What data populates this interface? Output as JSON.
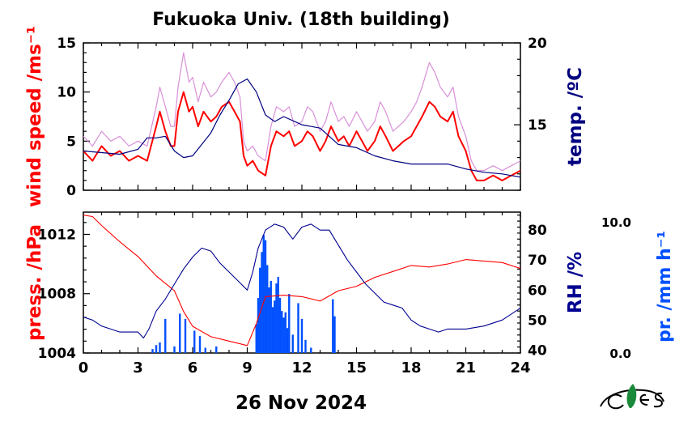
{
  "title": "Fukuoka Univ. (18th building)",
  "xlabel": "26 Nov 2024",
  "colors": {
    "wind": "#ff0000",
    "wind_gust": "#d890d8",
    "temp": "#000080",
    "press": "#ff0000",
    "rh": "#000090",
    "precip": "#0050ff",
    "axis": "#000000"
  },
  "logo": "ces-logo-icon",
  "chart_data": [
    {
      "type": "line",
      "panel": "top",
      "xlim": [
        0,
        24
      ],
      "xticks": [
        0,
        3,
        6,
        9,
        12,
        15,
        18,
        21,
        24
      ],
      "left_axis": {
        "label": "wind speed /ms⁻¹",
        "ylim": [
          0,
          15
        ],
        "ticks": [
          0,
          5,
          10,
          15
        ]
      },
      "right_axis": {
        "label": "temp. /ºC",
        "ylim": [
          11,
          20
        ],
        "ticks": [
          15,
          20
        ]
      },
      "series": [
        {
          "axis": "left",
          "kind": "wind",
          "x": [
            0,
            0.5,
            1,
            1.5,
            2,
            2.5,
            3,
            3.5,
            4,
            4.2,
            4.5,
            4.8,
            5,
            5.2,
            5.5,
            5.8,
            6,
            6.3,
            6.6,
            7,
            7.3,
            7.6,
            8,
            8.3,
            8.6,
            8.8,
            9,
            9.3,
            9.6,
            10,
            10.3,
            10.6,
            11,
            11.3,
            11.6,
            12,
            12.3,
            12.6,
            13,
            13.3,
            13.6,
            14,
            14.3,
            14.6,
            15,
            15.3,
            15.6,
            16,
            16.3,
            16.6,
            17,
            17.3,
            17.6,
            18,
            18.3,
            18.6,
            19,
            19.3,
            19.6,
            20,
            20.3,
            20.6,
            21,
            21.3,
            21.6,
            22,
            22.5,
            23,
            23.5,
            24
          ],
          "values": [
            4,
            3,
            4.5,
            3.5,
            4,
            3,
            3.5,
            3,
            6.5,
            8,
            6,
            4.5,
            4.5,
            8,
            10,
            8,
            8.5,
            6.5,
            8,
            7,
            7.5,
            8.5,
            9,
            8,
            7,
            3.5,
            2.5,
            3,
            2,
            1.5,
            4.5,
            6,
            5.5,
            6,
            4.5,
            5,
            6,
            5.5,
            4,
            5,
            6.5,
            5,
            5.5,
            4.5,
            6,
            5,
            4,
            5,
            6.5,
            5.5,
            4,
            4.5,
            5,
            5.5,
            6.5,
            7.5,
            9,
            8.5,
            7.5,
            7,
            8,
            5.5,
            4,
            2,
            1,
            1,
            1.5,
            1,
            1.5,
            2
          ]
        },
        {
          "axis": "left",
          "kind": "gust",
          "x": [
            0,
            0.5,
            1,
            1.5,
            2,
            2.5,
            3,
            3.5,
            4,
            4.2,
            4.5,
            4.8,
            5,
            5.2,
            5.5,
            5.8,
            6,
            6.3,
            6.6,
            7,
            7.3,
            7.6,
            8,
            8.3,
            8.6,
            8.8,
            9,
            9.3,
            9.6,
            10,
            10.3,
            10.6,
            11,
            11.3,
            11.6,
            12,
            12.3,
            12.6,
            13,
            13.3,
            13.6,
            14,
            14.3,
            14.6,
            15,
            15.3,
            15.6,
            16,
            16.3,
            16.6,
            17,
            17.3,
            17.6,
            18,
            18.3,
            18.6,
            19,
            19.3,
            19.6,
            20,
            20.3,
            20.6,
            21,
            21.3,
            21.6,
            22,
            22.5,
            23,
            23.5,
            24
          ],
          "values": [
            5.5,
            4.5,
            6,
            5,
            5.5,
            4.5,
            5,
            4.5,
            8.5,
            10.5,
            8.5,
            6.5,
            6.5,
            10.5,
            14,
            11,
            11.5,
            9,
            11,
            9.5,
            10,
            11,
            12,
            11,
            9.5,
            5,
            4,
            4.5,
            3.5,
            3,
            6.5,
            8.5,
            8,
            8.5,
            6.5,
            7,
            8.5,
            8,
            6,
            7,
            9,
            7,
            7.5,
            6.5,
            8,
            7,
            6,
            7,
            9,
            8,
            6,
            6.5,
            7,
            8,
            9,
            10.5,
            13,
            12,
            10.5,
            9.5,
            10.5,
            7.5,
            5.5,
            3,
            2,
            2,
            2.5,
            2,
            2.5,
            3
          ]
        },
        {
          "axis": "right",
          "kind": "temp",
          "x": [
            0,
            1,
            2,
            3,
            3.5,
            4,
            4.5,
            5,
            5.5,
            6,
            6.5,
            7,
            7.5,
            8,
            8.5,
            9,
            9.5,
            10,
            10.5,
            11,
            12,
            13,
            14,
            15,
            16,
            17,
            18,
            19,
            20,
            21,
            22,
            23,
            24
          ],
          "values": [
            13.4,
            13.3,
            13.2,
            13.5,
            14.2,
            14.2,
            14.3,
            13.4,
            13,
            13.1,
            13.8,
            14.5,
            15.6,
            16.5,
            17.5,
            17.8,
            17,
            15.6,
            15.2,
            15.5,
            15,
            14.8,
            13.8,
            13.6,
            13.1,
            12.8,
            12.6,
            12.6,
            12.6,
            12.3,
            12.1,
            12,
            11.8
          ]
        }
      ]
    },
    {
      "type": "line",
      "panel": "bottom",
      "xlim": [
        0,
        24
      ],
      "xticks": [
        0,
        3,
        6,
        9,
        12,
        15,
        18,
        21,
        24
      ],
      "xticklabels": [
        "0",
        "3",
        "6",
        "9",
        "12",
        "15",
        "18",
        "21",
        "24"
      ],
      "left_axis": {
        "label": "press. /hPa",
        "ylim": [
          1004,
          1013.5
        ],
        "ticks": [
          1004,
          1008,
          1012
        ]
      },
      "right_axis": {
        "label": "RH /%",
        "ylim": [
          39,
          86
        ],
        "ticks": [
          40,
          50,
          60,
          70,
          80
        ]
      },
      "far_right_axis": {
        "label": "pr. /mm h⁻¹",
        "ylim": [
          0,
          10
        ],
        "ticks": [
          0,
          10
        ],
        "ticklabels": [
          "0.0",
          "10.0"
        ]
      },
      "series": [
        {
          "axis": "left",
          "kind": "press",
          "x": [
            0,
            0.5,
            1,
            2,
            3,
            4,
            5,
            5.5,
            6,
            7,
            8,
            9,
            9.5,
            10,
            11,
            12,
            13,
            14,
            15,
            16,
            17,
            18,
            19,
            20,
            21,
            22,
            23,
            24
          ],
          "values": [
            1013.3,
            1013.2,
            1012.6,
            1011.5,
            1010.5,
            1009.2,
            1008.2,
            1006.8,
            1005.8,
            1005.1,
            1004.8,
            1004.5,
            1006,
            1007.8,
            1007.9,
            1007.8,
            1007.5,
            1008.2,
            1008.5,
            1009.1,
            1009.5,
            1009.9,
            1009.8,
            1010,
            1010.3,
            1010.2,
            1010.1,
            1009.7
          ]
        },
        {
          "axis": "right",
          "kind": "rh",
          "x": [
            0,
            0.5,
            1,
            2,
            3,
            3.3,
            3.6,
            4,
            4.5,
            5,
            5.5,
            6,
            6.5,
            7,
            7.5,
            8,
            8.5,
            9,
            9.3,
            9.6,
            10,
            10.5,
            11,
            11.5,
            12,
            12.5,
            13,
            13.5,
            14,
            14.5,
            15,
            15.5,
            16,
            16.5,
            17,
            17.5,
            18,
            18.5,
            19,
            19.5,
            20,
            21,
            22,
            23,
            24
          ],
          "values": [
            51,
            50,
            48,
            46,
            46,
            44,
            47,
            53,
            57,
            62,
            67,
            71,
            74,
            73,
            69,
            66,
            63,
            60,
            66,
            74,
            80,
            82,
            81,
            77,
            81,
            82,
            80,
            80,
            75,
            70,
            66,
            62,
            59,
            56,
            55,
            54,
            50,
            48,
            47,
            46,
            47,
            47,
            48,
            50,
            54
          ]
        },
        {
          "axis": "far_right",
          "kind": "precip",
          "x": [
            3.8,
            4.0,
            4.2,
            4.5,
            5.0,
            5.3,
            5.6,
            6.1,
            6.4,
            6.7,
            7.3,
            9.5,
            9.6,
            9.7,
            9.8,
            9.9,
            10.0,
            10.1,
            10.2,
            10.3,
            10.4,
            10.5,
            10.6,
            10.7,
            10.8,
            10.9,
            11.0,
            11.1,
            11.2,
            11.3,
            11.5,
            11.8,
            12.0,
            12.2,
            12.5,
            13.7,
            13.8
          ],
          "values": [
            0.3,
            0.6,
            0.8,
            2.6,
            0.5,
            3.0,
            2.6,
            1.7,
            1.3,
            0.4,
            0.5,
            2.2,
            4.2,
            6.5,
            7.7,
            9.0,
            8.6,
            6.7,
            5.0,
            5.5,
            3.5,
            4.0,
            5.3,
            5.8,
            4.2,
            3.2,
            2.7,
            3.1,
            1.9,
            4.5,
            1.4,
            3.8,
            2.6,
            1.0,
            0.4,
            4.1,
            2.8
          ]
        }
      ]
    }
  ]
}
